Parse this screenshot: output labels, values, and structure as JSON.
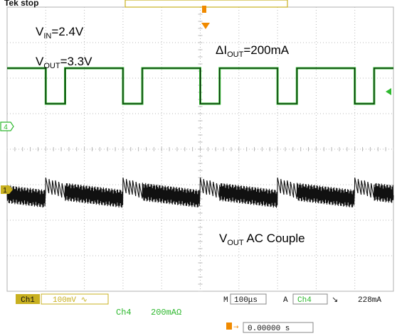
{
  "header": {
    "status": "Tek stop"
  },
  "annotations": {
    "vin_prefix": "V",
    "vin_sub": "IN",
    "vin_suffix": "=2.4V",
    "vout_prefix": "V",
    "vout_sub": "OUT",
    "vout_suffix": "=3.3V",
    "dI_prefix": "ΔI",
    "dI_sub": "OUT",
    "dI_suffix": "=200mA",
    "ac_prefix": "V",
    "ac_sub": "OUT",
    "ac_suffix": " AC Couple"
  },
  "readouts": {
    "ch1_label": "Ch1",
    "ch1_scale": "100mV ∿",
    "ch4_label": "Ch4",
    "ch4_scale": "200mAΩ",
    "timebase_prefix": "M",
    "timebase": "100μs",
    "trig_mode": "A",
    "trig_source": "Ch4",
    "trig_slope": "↘",
    "trig_level": "228mA",
    "trig_pos": "0.00000 s"
  },
  "markers": {
    "ch4_marker": "4",
    "ch1_marker": "1",
    "trigger_marker": "T"
  },
  "colors": {
    "ch4": "#2eb82e",
    "ch1": "#111111",
    "grid": "#b8b8b8",
    "readout_bg": "#c8b020",
    "readout_text": "#111111"
  },
  "chart_data": {
    "type": "line",
    "title": "",
    "xlabel": "",
    "ylabel": "",
    "grid": true,
    "xlim": [
      -500,
      500
    ],
    "x_unit": "μs",
    "series": [
      {
        "name": "Ch4",
        "unit": "mA",
        "scale_per_div": 200,
        "x": [
          -500,
          -400,
          -400,
          -350,
          -350,
          -200,
          -200,
          -150,
          -150,
          0,
          0,
          50,
          50,
          200,
          200,
          250,
          250,
          400,
          400,
          450,
          450,
          500
        ],
        "y": [
          200,
          200,
          0,
          0,
          200,
          200,
          0,
          0,
          200,
          200,
          0,
          0,
          200,
          200,
          0,
          0,
          200,
          200,
          0,
          0,
          200,
          200
        ]
      },
      {
        "name": "Ch1",
        "unit": "mV",
        "scale_per_div": 100,
        "coupling": "AC",
        "load_period_us": 200,
        "high_load_duration_us": 50,
        "ripple_cycles_during_high_load": 6,
        "ripple_amplitude_mv": 80
      }
    ]
  }
}
